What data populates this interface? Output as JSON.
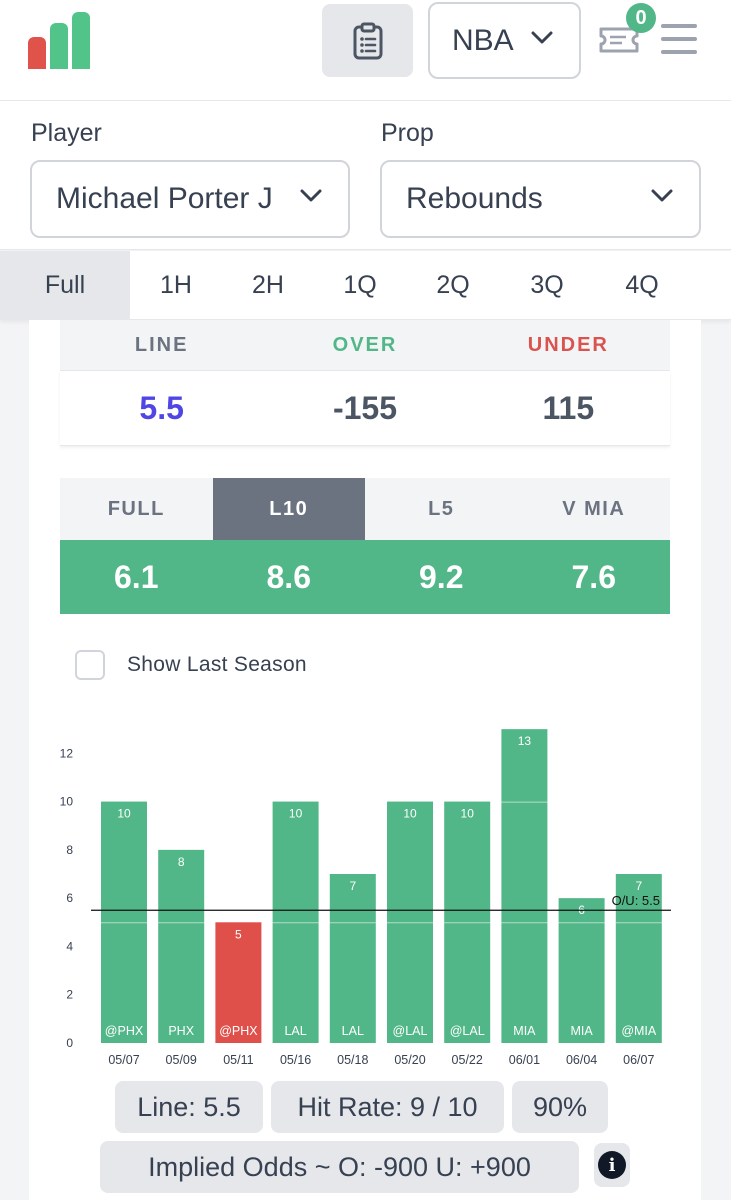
{
  "header": {
    "league": "NBA",
    "betslip_count": "0",
    "logo_colors": [
      "#e0534a",
      "#52c48a",
      "#52c48a"
    ]
  },
  "selectors": {
    "player_label": "Player",
    "player_value": "Michael Porter J",
    "prop_label": "Prop",
    "prop_value": "Rebounds"
  },
  "period_tabs": [
    {
      "label": "Full",
      "active": true
    },
    {
      "label": "1H",
      "active": false
    },
    {
      "label": "2H",
      "active": false
    },
    {
      "label": "1Q",
      "active": false
    },
    {
      "label": "2Q",
      "active": false
    },
    {
      "label": "3Q",
      "active": false
    },
    {
      "label": "4Q",
      "active": false
    }
  ],
  "lines": {
    "headers": [
      "LINE",
      "OVER",
      "UNDER"
    ],
    "header_colors": [
      "#6b7280",
      "#52b788",
      "#d9534f"
    ],
    "values": [
      "5.5",
      "-155",
      "115"
    ],
    "value_colors": [
      "#4f46e5",
      "#4b5563",
      "#4b5563"
    ]
  },
  "averages": {
    "tabs": [
      "FULL",
      "L10",
      "L5",
      "V MIA"
    ],
    "active_tab": "L10",
    "values": [
      "6.1",
      "8.6",
      "9.2",
      "7.6"
    ]
  },
  "show_last_season": {
    "label": "Show Last Season",
    "checked": false
  },
  "chart_data": {
    "type": "bar",
    "categories": [
      "05/07",
      "05/09",
      "05/11",
      "05/16",
      "05/18",
      "05/20",
      "05/22",
      "06/01",
      "06/04",
      "06/07"
    ],
    "opponents": [
      "@PHX",
      "PHX",
      "@PHX",
      "LAL",
      "LAL",
      "@LAL",
      "@LAL",
      "MIA",
      "MIA",
      "@MIA"
    ],
    "values": [
      10,
      8,
      5,
      10,
      7,
      10,
      10,
      13,
      6,
      7
    ],
    "threshold": 5.5,
    "threshold_label": "O/U: 5.5",
    "yticks": [
      0,
      2,
      4,
      6,
      8,
      10,
      12
    ],
    "ylim": [
      0,
      14
    ],
    "colors": {
      "over": "#52b788",
      "under": "#e0504a"
    }
  },
  "summary": {
    "line": "Line: 5.5",
    "hit_rate": "Hit Rate: 9 / 10",
    "percent": "90%",
    "implied_odds": "Implied Odds ~ O: -900 U: +900"
  }
}
